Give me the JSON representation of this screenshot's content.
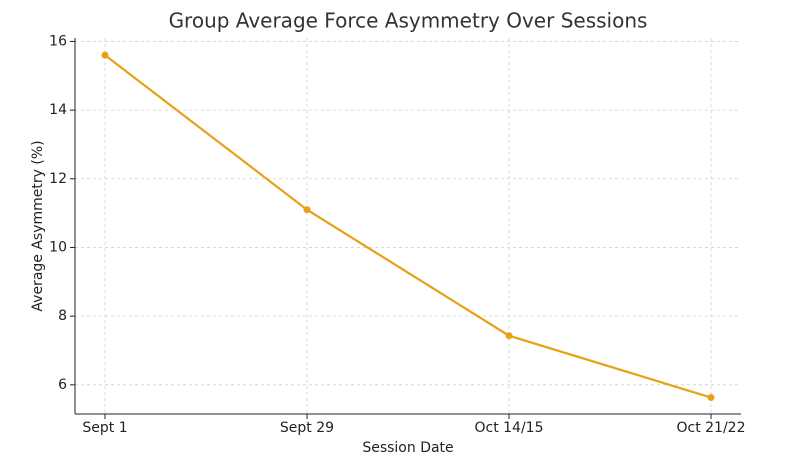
{
  "chart_data": {
    "type": "line",
    "title": "Group Average Force Asymmetry Over Sessions",
    "xlabel": "Session Date",
    "ylabel": "Average Asymmetry (%)",
    "categories": [
      "Sept 1",
      "Sept 29",
      "Oct 14/15",
      "Oct 21/22"
    ],
    "series": [
      {
        "name": "Average Asymmetry",
        "color": "#e6a117",
        "values": [
          15.6,
          11.1,
          7.43,
          5.63
        ]
      }
    ],
    "ylim": [
      5.15,
      16.1
    ],
    "yticks": [
      6,
      8,
      10,
      12,
      14,
      16
    ],
    "grid": true
  }
}
